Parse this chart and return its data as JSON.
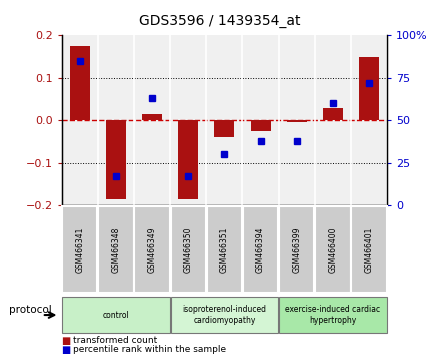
{
  "title": "GDS3596 / 1439354_at",
  "samples": [
    "GSM466341",
    "GSM466348",
    "GSM466349",
    "GSM466350",
    "GSM466351",
    "GSM466394",
    "GSM466399",
    "GSM466400",
    "GSM466401"
  ],
  "bar_values": [
    0.175,
    -0.185,
    0.015,
    -0.185,
    -0.04,
    -0.025,
    -0.005,
    0.03,
    0.15
  ],
  "dot_values": [
    85,
    17,
    63,
    17,
    30,
    38,
    38,
    60,
    72
  ],
  "ylim_left": [
    -0.2,
    0.2
  ],
  "ylim_right": [
    0,
    100
  ],
  "yticks_left": [
    -0.2,
    -0.1,
    0,
    0.1,
    0.2
  ],
  "yticks_right": [
    0,
    25,
    50,
    75,
    100
  ],
  "ytick_labels_right": [
    "0",
    "25",
    "50",
    "75",
    "100%"
  ],
  "groups": [
    {
      "label": "control",
      "start": 0,
      "end": 3,
      "color": "#c8f0c8"
    },
    {
      "label": "isoproterenol-induced\ncardiomyopathy",
      "start": 3,
      "end": 6,
      "color": "#d4f5d4"
    },
    {
      "label": "exercise-induced cardiac\nhypertrophy",
      "start": 6,
      "end": 9,
      "color": "#a8e8a8"
    }
  ],
  "bar_color": "#aa1111",
  "dot_color": "#0000cc",
  "zero_line_color": "#cc0000",
  "protocol_label": "protocol",
  "legend_bar_label": "transformed count",
  "legend_dot_label": "percentile rank within the sample",
  "plot_bg_color": "#f0f0f0",
  "sample_bg_color": "#cccccc",
  "sample_border_color": "#ffffff"
}
